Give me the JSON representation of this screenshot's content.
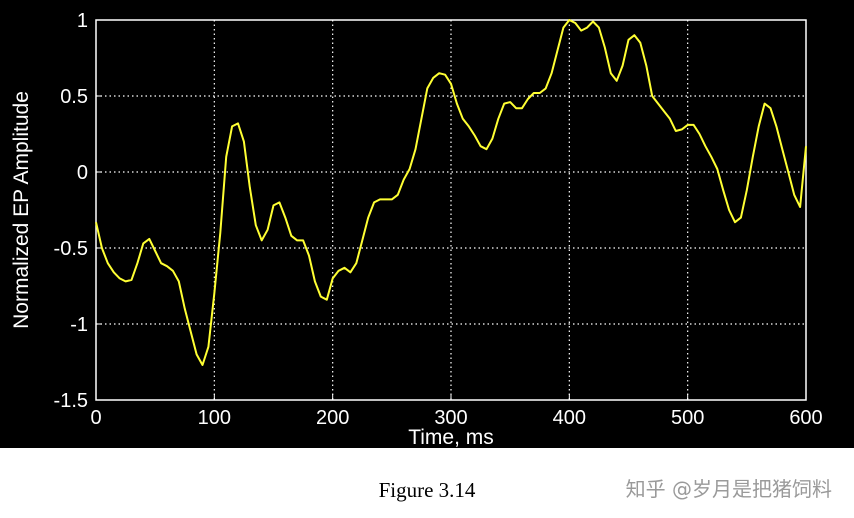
{
  "chart_data": {
    "type": "line",
    "title": "",
    "xlabel": "Time, ms",
    "ylabel": "Normalized EP Amplitude",
    "xlim": [
      0,
      600
    ],
    "ylim": [
      -1.5,
      1
    ],
    "xticks": [
      0,
      100,
      200,
      300,
      400,
      500,
      600
    ],
    "yticks": [
      -1.5,
      -1,
      -0.5,
      0,
      0.5,
      1
    ],
    "xtick_labels": [
      "0",
      "100",
      "200",
      "300",
      "400",
      "500",
      "600"
    ],
    "ytick_labels": [
      "-1.5",
      "-1",
      "-0.5",
      "0",
      "0.5",
      "1"
    ],
    "grid": true,
    "background_color": "#000000",
    "axes_color": "#ffffff",
    "line_color": "#ffff33",
    "series": [
      {
        "x": [
          0,
          5,
          10,
          15,
          20,
          25,
          30,
          35,
          40,
          45,
          50,
          55,
          60,
          65,
          70,
          75,
          80,
          85,
          90,
          95,
          100,
          105,
          110,
          115,
          120,
          125,
          130,
          135,
          140,
          145,
          150,
          155,
          160,
          165,
          170,
          175,
          180,
          185,
          190,
          195,
          200,
          205,
          210,
          215,
          220,
          225,
          230,
          235,
          240,
          245,
          250,
          255,
          260,
          265,
          270,
          275,
          280,
          285,
          290,
          295,
          300,
          305,
          310,
          315,
          320,
          325,
          330,
          335,
          340,
          345,
          350,
          355,
          360,
          365,
          370,
          375,
          380,
          385,
          390,
          395,
          400,
          405,
          410,
          415,
          420,
          425,
          430,
          435,
          440,
          445,
          450,
          455,
          460,
          465,
          470,
          475,
          480,
          485,
          490,
          495,
          500,
          505,
          510,
          515,
          520,
          525,
          530,
          535,
          540,
          545,
          550,
          555,
          560,
          565,
          570,
          575,
          580,
          585,
          590,
          595,
          600
        ],
        "y": [
          -0.33,
          -0.5,
          -0.6,
          -0.66,
          -0.7,
          -0.72,
          -0.71,
          -0.6,
          -0.47,
          -0.44,
          -0.52,
          -0.6,
          -0.62,
          -0.65,
          -0.72,
          -0.9,
          -1.05,
          -1.2,
          -1.27,
          -1.15,
          -0.8,
          -0.4,
          0.1,
          0.3,
          0.32,
          0.2,
          -0.1,
          -0.35,
          -0.45,
          -0.38,
          -0.22,
          -0.2,
          -0.3,
          -0.42,
          -0.45,
          -0.45,
          -0.55,
          -0.72,
          -0.82,
          -0.84,
          -0.7,
          -0.65,
          -0.63,
          -0.66,
          -0.6,
          -0.45,
          -0.3,
          -0.2,
          -0.18,
          -0.18,
          -0.18,
          -0.15,
          -0.05,
          0.02,
          0.15,
          0.35,
          0.55,
          0.62,
          0.65,
          0.64,
          0.58,
          0.45,
          0.35,
          0.3,
          0.24,
          0.17,
          0.15,
          0.22,
          0.35,
          0.45,
          0.46,
          0.42,
          0.42,
          0.48,
          0.52,
          0.52,
          0.55,
          0.65,
          0.8,
          0.95,
          1.0,
          0.98,
          0.93,
          0.95,
          0.99,
          0.95,
          0.82,
          0.65,
          0.6,
          0.7,
          0.87,
          0.9,
          0.85,
          0.7,
          0.5,
          0.45,
          0.4,
          0.35,
          0.27,
          0.28,
          0.31,
          0.31,
          0.25,
          0.17,
          0.1,
          0.02,
          -0.12,
          -0.25,
          -0.33,
          -0.3,
          -0.12,
          0.1,
          0.3,
          0.45,
          0.42,
          0.3,
          0.15,
          0.0,
          -0.15,
          -0.23,
          0.17
        ]
      }
    ]
  },
  "caption": "Figure 3.14",
  "watermark": "知乎 @岁月是把猪饲料"
}
